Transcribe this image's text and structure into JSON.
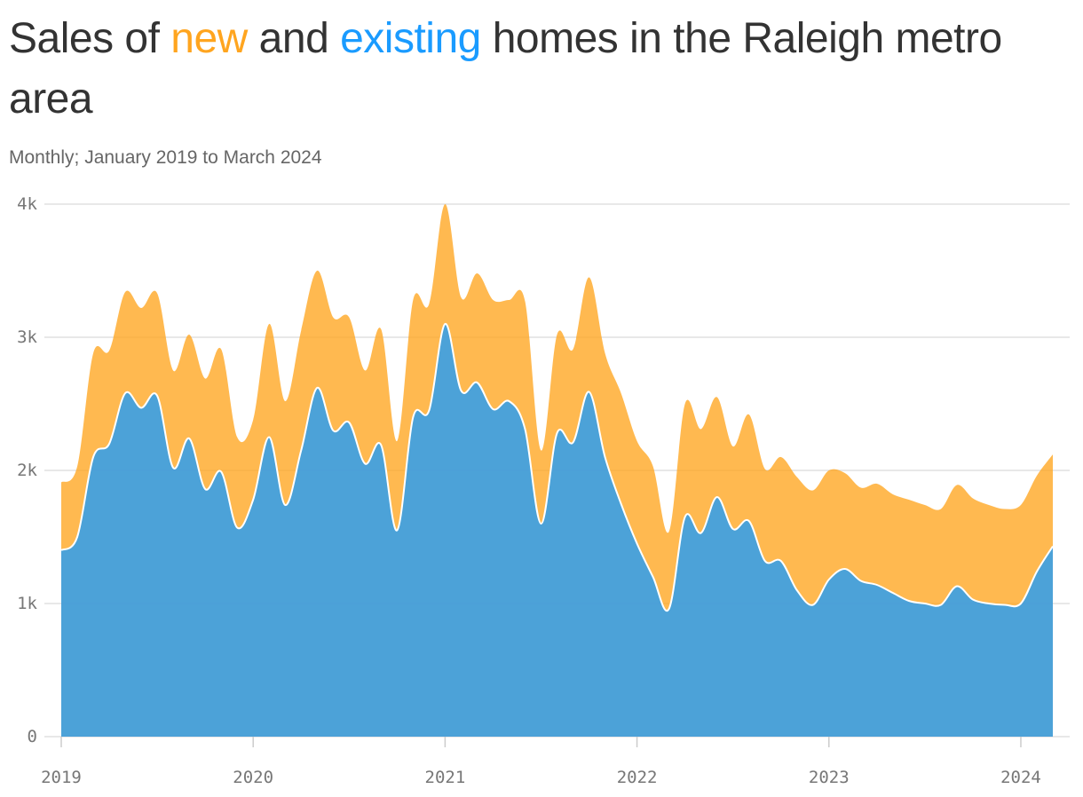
{
  "title": {
    "part1": "Sales of ",
    "new_word": "new",
    "part2": " and ",
    "existing_word": "existing",
    "part3": " homes in the Raleigh metro area"
  },
  "subtitle": "Monthly; January 2019 to March 2024",
  "colors": {
    "new": "#ffa51f",
    "existing": "#1a9bff",
    "grid": "#e0e0e0",
    "text": "#333333"
  },
  "chart_data": {
    "type": "area",
    "stacked": true,
    "x_start": "2019-01",
    "x_end": "2024-03",
    "ylim": [
      0,
      4000
    ],
    "y_ticks": [
      0,
      1000,
      2000,
      3000,
      4000
    ],
    "y_tick_labels": [
      "0",
      "1k",
      "2k",
      "3k",
      "4k"
    ],
    "x_tick_labels": [
      "2019",
      "2020",
      "2021",
      "2022",
      "2023",
      "2024"
    ],
    "grid": true,
    "series": [
      {
        "name": "existing",
        "color": "#1a9bff",
        "values": [
          1400,
          1500,
          2100,
          2200,
          2580,
          2470,
          2560,
          2020,
          2240,
          1860,
          1990,
          1570,
          1780,
          2250,
          1740,
          2150,
          2620,
          2300,
          2360,
          2050,
          2190,
          1550,
          2400,
          2450,
          3100,
          2600,
          2660,
          2460,
          2520,
          2310,
          1600,
          2280,
          2210,
          2590,
          2100,
          1750,
          1450,
          1200,
          960,
          1650,
          1530,
          1800,
          1560,
          1620,
          1320,
          1320,
          1100,
          990,
          1180,
          1260,
          1170,
          1140,
          1080,
          1020,
          1000,
          990,
          1130,
          1030,
          1000,
          990,
          1000,
          1240,
          1430
        ]
      },
      {
        "name": "new",
        "color": "#ffa51f",
        "values": [
          510,
          530,
          780,
          700,
          760,
          750,
          770,
          730,
          780,
          830,
          920,
          680,
          600,
          850,
          780,
          900,
          880,
          850,
          790,
          700,
          870,
          670,
          880,
          800,
          900,
          700,
          820,
          820,
          760,
          960,
          550,
          740,
          700,
          860,
          780,
          830,
          770,
          830,
          580,
          850,
          780,
          750,
          620,
          800,
          690,
          780,
          850,
          860,
          820,
          720,
          700,
          760,
          740,
          760,
          740,
          720,
          760,
          760,
          740,
          720,
          740,
          720,
          690
        ]
      }
    ]
  }
}
